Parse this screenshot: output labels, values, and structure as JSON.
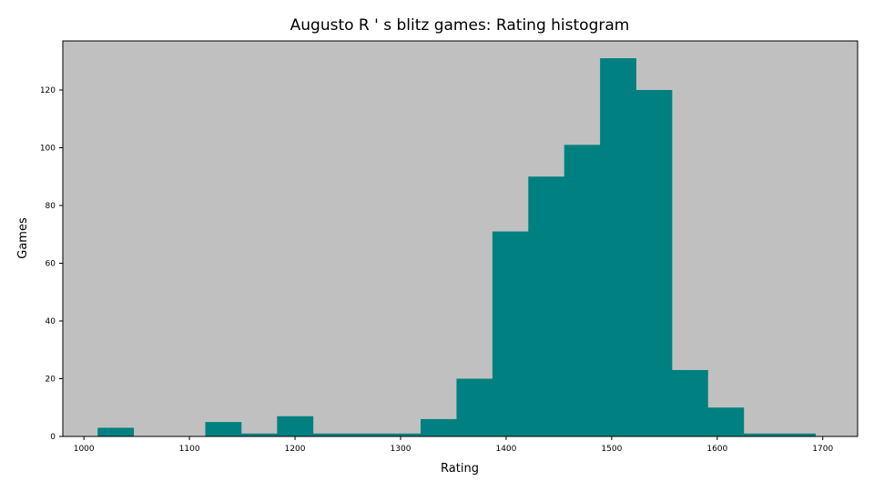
{
  "chart_data": {
    "type": "bar",
    "title": "Augusto R ' s blitz games: Rating histogram",
    "xlabel": "Rating",
    "ylabel": "Games",
    "xlim": [
      980,
      1733
    ],
    "ylim": [
      0,
      137
    ],
    "x_ticks": [
      1000,
      1100,
      1200,
      1300,
      1400,
      1500,
      1600,
      1700
    ],
    "y_ticks": [
      0,
      20,
      40,
      60,
      80,
      100,
      120
    ],
    "bins": [
      {
        "start": 1013,
        "end": 1047,
        "value": 3
      },
      {
        "start": 1047,
        "end": 1081,
        "value": 0
      },
      {
        "start": 1081,
        "end": 1115,
        "value": 0
      },
      {
        "start": 1115,
        "end": 1149,
        "value": 5
      },
      {
        "start": 1149,
        "end": 1183,
        "value": 1
      },
      {
        "start": 1183,
        "end": 1217,
        "value": 7
      },
      {
        "start": 1217,
        "end": 1251,
        "value": 1
      },
      {
        "start": 1251,
        "end": 1285,
        "value": 1
      },
      {
        "start": 1285,
        "end": 1319,
        "value": 1
      },
      {
        "start": 1319,
        "end": 1353,
        "value": 6
      },
      {
        "start": 1353,
        "end": 1387,
        "value": 20
      },
      {
        "start": 1387,
        "end": 1421,
        "value": 71
      },
      {
        "start": 1421,
        "end": 1455,
        "value": 90
      },
      {
        "start": 1455,
        "end": 1489,
        "value": 101
      },
      {
        "start": 1489,
        "end": 1523,
        "value": 131
      },
      {
        "start": 1523,
        "end": 1557,
        "value": 120
      },
      {
        "start": 1557,
        "end": 1591,
        "value": 23
      },
      {
        "start": 1591,
        "end": 1625,
        "value": 10
      },
      {
        "start": 1625,
        "end": 1659,
        "value": 1
      },
      {
        "start": 1659,
        "end": 1693,
        "value": 1
      }
    ],
    "bar_color": "#008080",
    "plot_background": "#c0c0c0",
    "grid": false,
    "legend": "none"
  }
}
